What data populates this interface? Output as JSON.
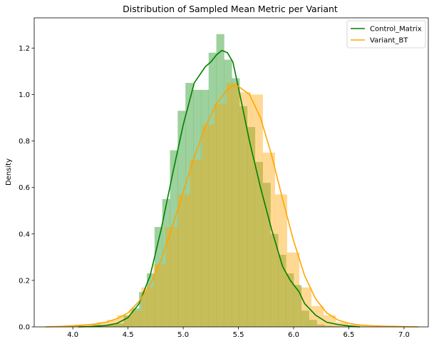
{
  "chart_data": {
    "type": "histogram+kde",
    "title": "Distribution of Sampled Mean Metric per Variant",
    "xlabel": "",
    "ylabel": "Density",
    "xlim": [
      3.65,
      7.22
    ],
    "ylim": [
      0,
      1.33
    ],
    "xticks": [
      4.0,
      4.5,
      5.0,
      5.5,
      6.0,
      6.5,
      7.0
    ],
    "xtick_labels": [
      "4.0",
      "4.5",
      "5.0",
      "5.5",
      "6.0",
      "6.5",
      "7.0"
    ],
    "yticks": [
      0.0,
      0.2,
      0.4,
      0.6,
      0.8,
      1.0,
      1.2
    ],
    "ytick_labels": [
      "0.0",
      "0.2",
      "0.4",
      "0.6",
      "0.8",
      "1.0",
      "1.2"
    ],
    "grid": false,
    "legend_position": "top-right",
    "series": [
      {
        "name": "Control_Matrix",
        "hist_color": "#3ca43c",
        "hist_opacity": 0.5,
        "line_color": "#008000",
        "bins": [
          {
            "x0": 3.96,
            "x1": 4.04,
            "density": 0.003
          },
          {
            "x0": 4.04,
            "x1": 4.11,
            "density": 0.005
          },
          {
            "x0": 4.11,
            "x1": 4.18,
            "density": 0.003
          },
          {
            "x0": 4.18,
            "x1": 4.25,
            "density": 0.01
          },
          {
            "x0": 4.25,
            "x1": 4.32,
            "density": 0.005
          },
          {
            "x0": 4.32,
            "x1": 4.39,
            "density": 0.01
          },
          {
            "x0": 4.39,
            "x1": 4.46,
            "density": 0.015
          },
          {
            "x0": 4.46,
            "x1": 4.53,
            "density": 0.05
          },
          {
            "x0": 4.53,
            "x1": 4.6,
            "density": 0.08
          },
          {
            "x0": 4.6,
            "x1": 4.67,
            "density": 0.15
          },
          {
            "x0": 4.67,
            "x1": 4.74,
            "density": 0.23
          },
          {
            "x0": 4.74,
            "x1": 4.81,
            "density": 0.43
          },
          {
            "x0": 4.81,
            "x1": 4.88,
            "density": 0.55
          },
          {
            "x0": 4.88,
            "x1": 4.95,
            "density": 0.76
          },
          {
            "x0": 4.95,
            "x1": 5.02,
            "density": 0.93
          },
          {
            "x0": 5.02,
            "x1": 5.09,
            "density": 1.05
          },
          {
            "x0": 5.09,
            "x1": 5.16,
            "density": 1.02
          },
          {
            "x0": 5.16,
            "x1": 5.23,
            "density": 1.02
          },
          {
            "x0": 5.23,
            "x1": 5.3,
            "density": 1.18
          },
          {
            "x0": 5.3,
            "x1": 5.37,
            "density": 1.26
          },
          {
            "x0": 5.37,
            "x1": 5.44,
            "density": 1.15
          },
          {
            "x0": 5.44,
            "x1": 5.51,
            "density": 1.07
          },
          {
            "x0": 5.51,
            "x1": 5.58,
            "density": 0.95
          },
          {
            "x0": 5.58,
            "x1": 5.65,
            "density": 0.86
          },
          {
            "x0": 5.65,
            "x1": 5.72,
            "density": 0.71
          },
          {
            "x0": 5.72,
            "x1": 5.79,
            "density": 0.62
          },
          {
            "x0": 5.79,
            "x1": 5.86,
            "density": 0.4
          },
          {
            "x0": 5.86,
            "x1": 5.93,
            "density": 0.31
          },
          {
            "x0": 5.93,
            "x1": 6.0,
            "density": 0.23
          },
          {
            "x0": 6.0,
            "x1": 6.07,
            "density": 0.18
          },
          {
            "x0": 6.07,
            "x1": 6.14,
            "density": 0.07
          },
          {
            "x0": 6.14,
            "x1": 6.21,
            "density": 0.03
          },
          {
            "x0": 6.21,
            "x1": 6.28,
            "density": 0.01
          },
          {
            "x0": 6.28,
            "x1": 6.35,
            "density": 0.005
          },
          {
            "x0": 6.35,
            "x1": 6.42,
            "density": 0.003
          }
        ],
        "kde": [
          [
            4.05,
            0.0
          ],
          [
            4.2,
            0.002
          ],
          [
            4.3,
            0.006
          ],
          [
            4.4,
            0.015
          ],
          [
            4.5,
            0.04
          ],
          [
            4.6,
            0.1
          ],
          [
            4.7,
            0.22
          ],
          [
            4.8,
            0.42
          ],
          [
            4.9,
            0.65
          ],
          [
            5.0,
            0.87
          ],
          [
            5.1,
            1.05
          ],
          [
            5.2,
            1.12
          ],
          [
            5.25,
            1.14
          ],
          [
            5.3,
            1.17
          ],
          [
            5.35,
            1.19
          ],
          [
            5.4,
            1.18
          ],
          [
            5.45,
            1.14
          ],
          [
            5.5,
            1.03
          ],
          [
            5.6,
            0.8
          ],
          [
            5.7,
            0.6
          ],
          [
            5.8,
            0.42
          ],
          [
            5.9,
            0.26
          ],
          [
            5.97,
            0.2
          ],
          [
            6.05,
            0.15
          ],
          [
            6.1,
            0.1
          ],
          [
            6.2,
            0.05
          ],
          [
            6.3,
            0.02
          ],
          [
            6.4,
            0.01
          ],
          [
            6.5,
            0.004
          ],
          [
            6.6,
            0.0
          ]
        ]
      },
      {
        "name": "Variant_BT",
        "hist_color": "#ffa500",
        "hist_opacity": 0.42,
        "line_color": "#ffa500",
        "bins": [
          {
            "x0": 3.8,
            "x1": 3.91,
            "density": 0.0
          },
          {
            "x0": 3.91,
            "x1": 4.02,
            "density": 0.005
          },
          {
            "x0": 4.02,
            "x1": 4.13,
            "density": 0.01
          },
          {
            "x0": 4.13,
            "x1": 4.22,
            "density": 0.01
          },
          {
            "x0": 4.22,
            "x1": 4.31,
            "density": 0.02
          },
          {
            "x0": 4.31,
            "x1": 4.4,
            "density": 0.03
          },
          {
            "x0": 4.4,
            "x1": 4.51,
            "density": 0.05
          },
          {
            "x0": 4.51,
            "x1": 4.62,
            "density": 0.07
          },
          {
            "x0": 4.62,
            "x1": 4.73,
            "density": 0.17
          },
          {
            "x0": 4.73,
            "x1": 4.84,
            "density": 0.27
          },
          {
            "x0": 4.84,
            "x1": 4.95,
            "density": 0.43
          },
          {
            "x0": 4.95,
            "x1": 5.06,
            "density": 0.57
          },
          {
            "x0": 5.06,
            "x1": 5.17,
            "density": 0.72
          },
          {
            "x0": 5.17,
            "x1": 5.28,
            "density": 0.87
          },
          {
            "x0": 5.28,
            "x1": 5.39,
            "density": 0.96
          },
          {
            "x0": 5.39,
            "x1": 5.5,
            "density": 1.05
          },
          {
            "x0": 5.5,
            "x1": 5.61,
            "density": 1.01
          },
          {
            "x0": 5.61,
            "x1": 5.72,
            "density": 1.0
          },
          {
            "x0": 5.72,
            "x1": 5.83,
            "density": 0.75
          },
          {
            "x0": 5.83,
            "x1": 5.94,
            "density": 0.57
          },
          {
            "x0": 5.94,
            "x1": 6.05,
            "density": 0.32
          },
          {
            "x0": 6.05,
            "x1": 6.16,
            "density": 0.17
          },
          {
            "x0": 6.16,
            "x1": 6.27,
            "density": 0.09
          },
          {
            "x0": 6.27,
            "x1": 6.38,
            "density": 0.05
          },
          {
            "x0": 6.38,
            "x1": 6.49,
            "density": 0.02
          },
          {
            "x0": 6.49,
            "x1": 6.6,
            "density": 0.01
          },
          {
            "x0": 6.6,
            "x1": 6.71,
            "density": 0.005
          },
          {
            "x0": 6.71,
            "x1": 6.82,
            "density": 0.005
          },
          {
            "x0": 6.82,
            "x1": 6.93,
            "density": 0.003
          },
          {
            "x0": 6.93,
            "x1": 7.04,
            "density": 0.0
          }
        ],
        "kde": [
          [
            3.75,
            0.0
          ],
          [
            3.9,
            0.002
          ],
          [
            4.0,
            0.005
          ],
          [
            4.1,
            0.008
          ],
          [
            4.2,
            0.012
          ],
          [
            4.3,
            0.02
          ],
          [
            4.4,
            0.035
          ],
          [
            4.5,
            0.06
          ],
          [
            4.6,
            0.11
          ],
          [
            4.7,
            0.18
          ],
          [
            4.8,
            0.29
          ],
          [
            4.9,
            0.43
          ],
          [
            5.0,
            0.58
          ],
          [
            5.1,
            0.73
          ],
          [
            5.2,
            0.86
          ],
          [
            5.3,
            0.96
          ],
          [
            5.4,
            1.02
          ],
          [
            5.45,
            1.04
          ],
          [
            5.5,
            1.035
          ],
          [
            5.6,
            1.0
          ],
          [
            5.7,
            0.9
          ],
          [
            5.8,
            0.74
          ],
          [
            5.9,
            0.55
          ],
          [
            6.0,
            0.37
          ],
          [
            6.1,
            0.22
          ],
          [
            6.2,
            0.12
          ],
          [
            6.3,
            0.06
          ],
          [
            6.4,
            0.03
          ],
          [
            6.5,
            0.015
          ],
          [
            6.6,
            0.008
          ],
          [
            6.7,
            0.005
          ],
          [
            6.8,
            0.003
          ],
          [
            6.9,
            0.002
          ],
          [
            7.0,
            0.001
          ],
          [
            7.13,
            0.0
          ]
        ]
      }
    ]
  }
}
